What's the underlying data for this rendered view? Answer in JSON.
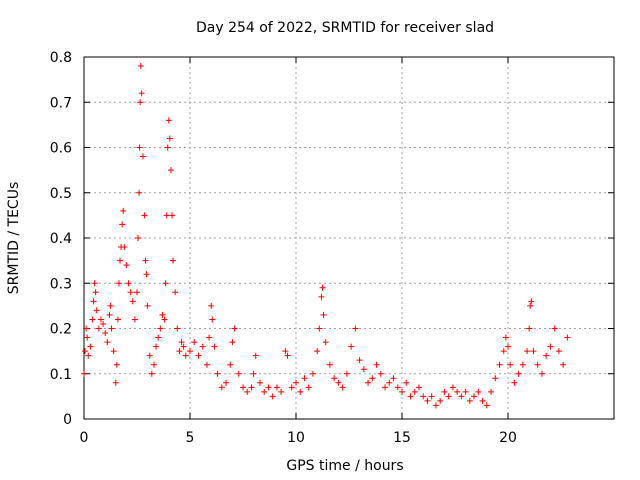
{
  "chart_data": {
    "type": "scatter",
    "title": "Day 254 of 2022, SRMTID for receiver slad",
    "xlabel": "GPS time / hours",
    "ylabel": "SRMTID / TECUs",
    "xlim": [
      0,
      25
    ],
    "ylim": [
      0,
      0.8
    ],
    "x_ticks": [
      0,
      5,
      10,
      15,
      20
    ],
    "y_ticks": [
      0,
      0.1,
      0.2,
      0.3,
      0.4,
      0.5,
      0.6,
      0.7,
      0.8
    ],
    "grid": true,
    "marker": "+",
    "series": [
      {
        "name": "SRMTID",
        "color": "#ff0000",
        "points": [
          [
            0.0,
            0.1
          ],
          [
            0.05,
            0.15
          ],
          [
            0.1,
            0.2
          ],
          [
            0.15,
            0.18
          ],
          [
            0.2,
            0.14
          ],
          [
            0.3,
            0.16
          ],
          [
            0.4,
            0.22
          ],
          [
            0.45,
            0.26
          ],
          [
            0.5,
            0.3
          ],
          [
            0.55,
            0.28
          ],
          [
            0.6,
            0.24
          ],
          [
            0.7,
            0.2
          ],
          [
            0.8,
            0.22
          ],
          [
            0.9,
            0.21
          ],
          [
            1.0,
            0.19
          ],
          [
            1.1,
            0.17
          ],
          [
            1.2,
            0.23
          ],
          [
            1.25,
            0.25
          ],
          [
            1.3,
            0.2
          ],
          [
            1.4,
            0.15
          ],
          [
            1.5,
            0.08
          ],
          [
            1.55,
            0.12
          ],
          [
            1.6,
            0.22
          ],
          [
            1.65,
            0.3
          ],
          [
            1.7,
            0.35
          ],
          [
            1.75,
            0.38
          ],
          [
            1.8,
            0.43
          ],
          [
            1.85,
            0.46
          ],
          [
            1.9,
            0.38
          ],
          [
            2.0,
            0.34
          ],
          [
            2.1,
            0.3
          ],
          [
            2.2,
            0.28
          ],
          [
            2.3,
            0.26
          ],
          [
            2.4,
            0.22
          ],
          [
            2.5,
            0.28
          ],
          [
            2.55,
            0.4
          ],
          [
            2.6,
            0.5
          ],
          [
            2.62,
            0.6
          ],
          [
            2.65,
            0.7
          ],
          [
            2.68,
            0.78
          ],
          [
            2.72,
            0.72
          ],
          [
            2.78,
            0.58
          ],
          [
            2.85,
            0.45
          ],
          [
            2.9,
            0.35
          ],
          [
            2.95,
            0.32
          ],
          [
            3.0,
            0.25
          ],
          [
            3.1,
            0.14
          ],
          [
            3.2,
            0.1
          ],
          [
            3.3,
            0.12
          ],
          [
            3.4,
            0.16
          ],
          [
            3.5,
            0.18
          ],
          [
            3.6,
            0.2
          ],
          [
            3.7,
            0.23
          ],
          [
            3.8,
            0.22
          ],
          [
            3.85,
            0.3
          ],
          [
            3.9,
            0.45
          ],
          [
            3.95,
            0.6
          ],
          [
            4.0,
            0.66
          ],
          [
            4.05,
            0.62
          ],
          [
            4.1,
            0.55
          ],
          [
            4.15,
            0.45
          ],
          [
            4.2,
            0.35
          ],
          [
            4.3,
            0.28
          ],
          [
            4.4,
            0.2
          ],
          [
            4.5,
            0.15
          ],
          [
            4.6,
            0.17
          ],
          [
            4.7,
            0.16
          ],
          [
            4.8,
            0.14
          ],
          [
            5.0,
            0.15
          ],
          [
            5.2,
            0.17
          ],
          [
            5.4,
            0.14
          ],
          [
            5.6,
            0.16
          ],
          [
            5.8,
            0.12
          ],
          [
            5.9,
            0.18
          ],
          [
            6.0,
            0.25
          ],
          [
            6.05,
            0.22
          ],
          [
            6.15,
            0.16
          ],
          [
            6.3,
            0.1
          ],
          [
            6.5,
            0.07
          ],
          [
            6.7,
            0.08
          ],
          [
            6.9,
            0.12
          ],
          [
            7.0,
            0.17
          ],
          [
            7.1,
            0.2
          ],
          [
            7.3,
            0.1
          ],
          [
            7.5,
            0.07
          ],
          [
            7.7,
            0.06
          ],
          [
            7.9,
            0.07
          ],
          [
            8.0,
            0.1
          ],
          [
            8.1,
            0.14
          ],
          [
            8.3,
            0.08
          ],
          [
            8.5,
            0.06
          ],
          [
            8.7,
            0.07
          ],
          [
            8.9,
            0.05
          ],
          [
            9.1,
            0.07
          ],
          [
            9.3,
            0.06
          ],
          [
            9.5,
            0.15
          ],
          [
            9.6,
            0.14
          ],
          [
            9.8,
            0.07
          ],
          [
            10.0,
            0.08
          ],
          [
            10.2,
            0.06
          ],
          [
            10.4,
            0.09
          ],
          [
            10.6,
            0.07
          ],
          [
            10.8,
            0.1
          ],
          [
            11.0,
            0.15
          ],
          [
            11.1,
            0.2
          ],
          [
            11.2,
            0.27
          ],
          [
            11.25,
            0.29
          ],
          [
            11.3,
            0.23
          ],
          [
            11.4,
            0.17
          ],
          [
            11.6,
            0.12
          ],
          [
            11.8,
            0.09
          ],
          [
            12.0,
            0.08
          ],
          [
            12.2,
            0.07
          ],
          [
            12.4,
            0.1
          ],
          [
            12.6,
            0.16
          ],
          [
            12.8,
            0.2
          ],
          [
            13.0,
            0.13
          ],
          [
            13.2,
            0.11
          ],
          [
            13.4,
            0.08
          ],
          [
            13.6,
            0.09
          ],
          [
            13.8,
            0.12
          ],
          [
            14.0,
            0.1
          ],
          [
            14.2,
            0.07
          ],
          [
            14.4,
            0.08
          ],
          [
            14.6,
            0.09
          ],
          [
            14.8,
            0.07
          ],
          [
            15.0,
            0.06
          ],
          [
            15.2,
            0.08
          ],
          [
            15.4,
            0.05
          ],
          [
            15.6,
            0.06
          ],
          [
            15.8,
            0.07
          ],
          [
            16.0,
            0.05
          ],
          [
            16.2,
            0.04
          ],
          [
            16.4,
            0.05
          ],
          [
            16.6,
            0.03
          ],
          [
            16.8,
            0.04
          ],
          [
            17.0,
            0.06
          ],
          [
            17.2,
            0.05
          ],
          [
            17.4,
            0.07
          ],
          [
            17.6,
            0.06
          ],
          [
            17.8,
            0.05
          ],
          [
            18.0,
            0.06
          ],
          [
            18.2,
            0.04
          ],
          [
            18.4,
            0.05
          ],
          [
            18.6,
            0.06
          ],
          [
            18.8,
            0.04
          ],
          [
            19.0,
            0.03
          ],
          [
            19.2,
            0.06
          ],
          [
            19.4,
            0.09
          ],
          [
            19.6,
            0.12
          ],
          [
            19.8,
            0.15
          ],
          [
            19.9,
            0.18
          ],
          [
            20.0,
            0.16
          ],
          [
            20.1,
            0.12
          ],
          [
            20.3,
            0.08
          ],
          [
            20.5,
            0.1
          ],
          [
            20.7,
            0.12
          ],
          [
            20.9,
            0.15
          ],
          [
            21.0,
            0.2
          ],
          [
            21.05,
            0.25
          ],
          [
            21.1,
            0.26
          ],
          [
            21.2,
            0.15
          ],
          [
            21.4,
            0.12
          ],
          [
            21.6,
            0.1
          ],
          [
            21.8,
            0.14
          ],
          [
            22.0,
            0.16
          ],
          [
            22.2,
            0.2
          ],
          [
            22.4,
            0.15
          ],
          [
            22.6,
            0.12
          ],
          [
            22.8,
            0.18
          ]
        ]
      }
    ]
  }
}
